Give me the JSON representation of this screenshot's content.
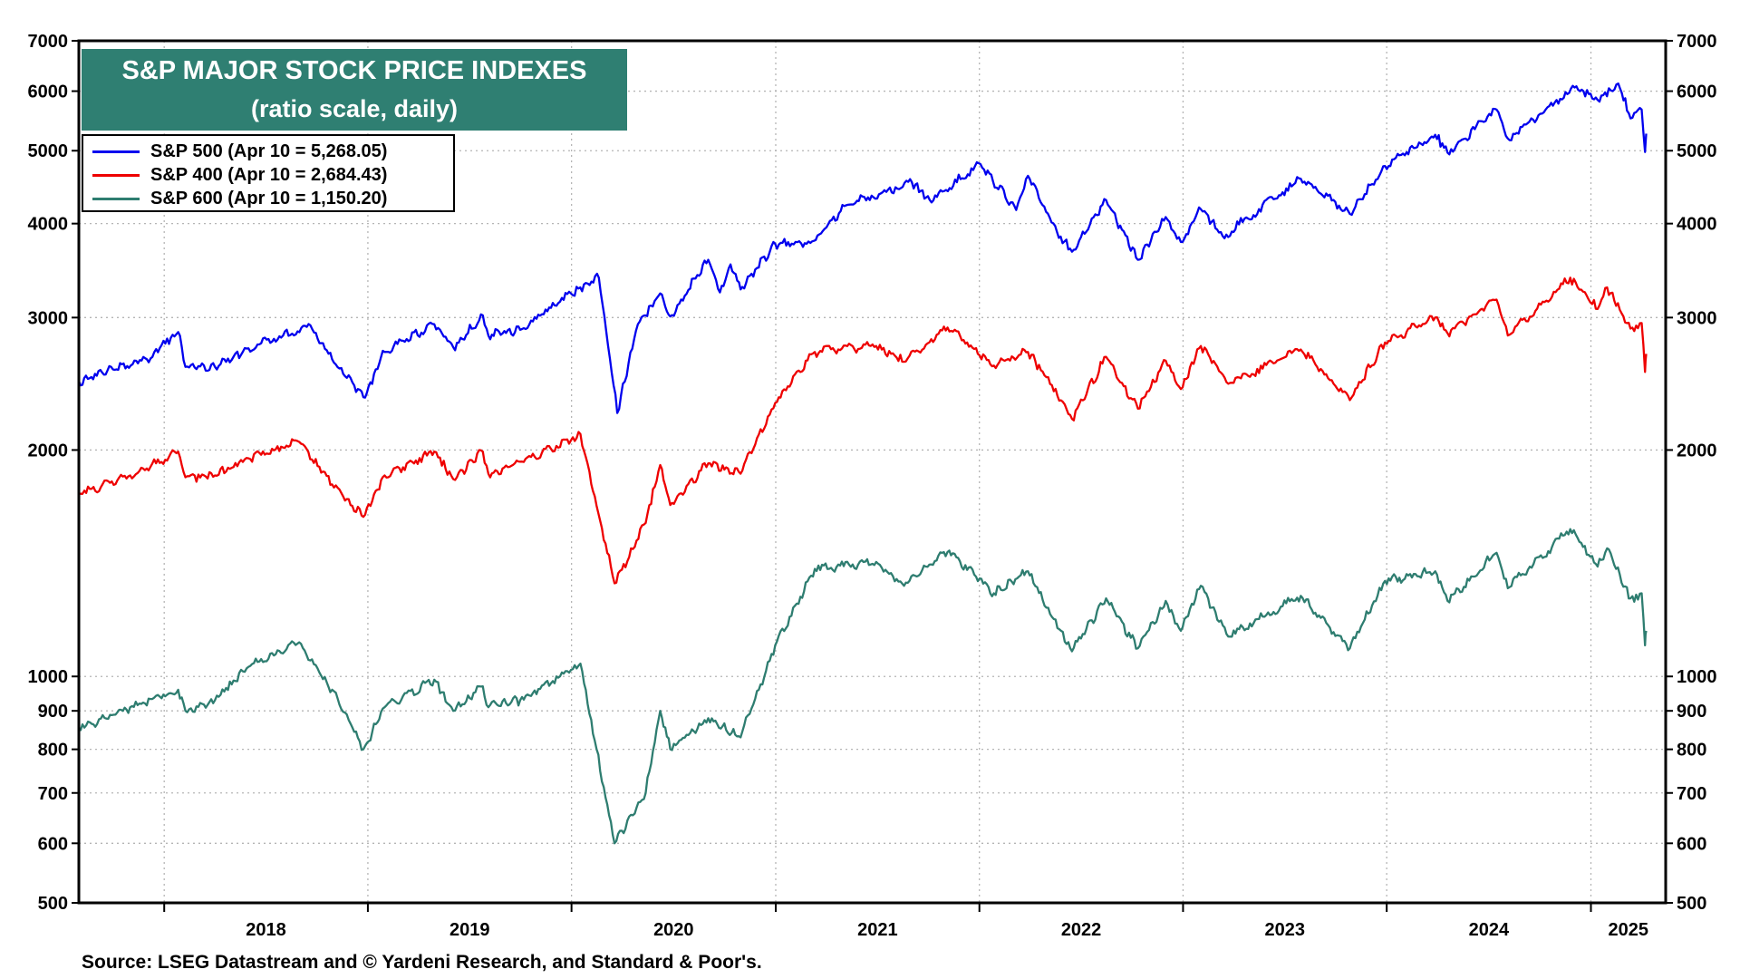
{
  "chart_data": {
    "type": "line",
    "title": "S&P MAJOR STOCK PRICE INDEXES",
    "subtitle": "(ratio scale, daily)",
    "xlabel": "",
    "ylabel": "",
    "yscale": "log",
    "ylim": [
      500,
      7000
    ],
    "xlim": [
      "2017-08-01",
      "2025-05-15"
    ],
    "grid": true,
    "legend_position": "top-left",
    "y_ticks": [
      "7000",
      "6000",
      "5000",
      "4000",
      "3000",
      "2000",
      "1000",
      "900",
      "800",
      "700",
      "600",
      "500"
    ],
    "y_tick_values": [
      7000,
      6000,
      5000,
      4000,
      3000,
      2000,
      1000,
      900,
      800,
      700,
      600,
      500
    ],
    "x_ticks": [
      "2018",
      "2019",
      "2020",
      "2021",
      "2022",
      "2023",
      "2024",
      "2025"
    ],
    "series": [
      {
        "name": "S&P 500 (Apr 10 = 5,268.05)",
        "color": "#0000ee",
        "points": [
          [
            "2017-08-01",
            2470
          ],
          [
            "2017-10-01",
            2560
          ],
          [
            "2017-12-01",
            2640
          ],
          [
            "2018-01-26",
            2870
          ],
          [
            "2018-02-08",
            2580
          ],
          [
            "2018-04-02",
            2580
          ],
          [
            "2018-06-01",
            2730
          ],
          [
            "2018-09-20",
            2930
          ],
          [
            "2018-10-29",
            2640
          ],
          [
            "2018-12-24",
            2350
          ],
          [
            "2019-01-31",
            2700
          ],
          [
            "2019-04-30",
            2940
          ],
          [
            "2019-06-03",
            2740
          ],
          [
            "2019-07-26",
            3020
          ],
          [
            "2019-08-05",
            2840
          ],
          [
            "2019-10-01",
            2890
          ],
          [
            "2019-12-31",
            3230
          ],
          [
            "2020-02-19",
            3390
          ],
          [
            "2020-03-23",
            2240
          ],
          [
            "2020-04-29",
            2940
          ],
          [
            "2020-06-08",
            3230
          ],
          [
            "2020-06-26",
            3010
          ],
          [
            "2020-09-02",
            3580
          ],
          [
            "2020-09-23",
            3240
          ],
          [
            "2020-10-12",
            3530
          ],
          [
            "2020-10-30",
            3270
          ],
          [
            "2020-12-31",
            3760
          ],
          [
            "2021-03-04",
            3770
          ],
          [
            "2021-05-07",
            4230
          ],
          [
            "2021-09-02",
            4540
          ],
          [
            "2021-10-04",
            4300
          ],
          [
            "2022-01-03",
            4800
          ],
          [
            "2022-03-08",
            4170
          ],
          [
            "2022-03-29",
            4630
          ],
          [
            "2022-05-20",
            3900
          ],
          [
            "2022-06-16",
            3670
          ],
          [
            "2022-08-16",
            4300
          ],
          [
            "2022-10-12",
            3580
          ],
          [
            "2022-12-01",
            4080
          ],
          [
            "2022-12-28",
            3780
          ],
          [
            "2023-02-02",
            4180
          ],
          [
            "2023-03-13",
            3850
          ],
          [
            "2023-07-31",
            4590
          ],
          [
            "2023-10-27",
            4120
          ],
          [
            "2023-12-29",
            4770
          ],
          [
            "2024-03-28",
            5250
          ],
          [
            "2024-04-19",
            4970
          ],
          [
            "2024-07-16",
            5670
          ],
          [
            "2024-08-05",
            5190
          ],
          [
            "2024-12-06",
            6090
          ],
          [
            "2025-01-13",
            5840
          ],
          [
            "2025-02-19",
            6140
          ],
          [
            "2025-03-13",
            5520
          ],
          [
            "2025-04-02",
            5670
          ],
          [
            "2025-04-08",
            4980
          ],
          [
            "2025-04-10",
            5268
          ]
        ]
      },
      {
        "name": "S&P 400 (Apr 10 = 2,684.43)",
        "color": "#ee0000",
        "points": [
          [
            "2017-08-01",
            1750
          ],
          [
            "2017-11-01",
            1850
          ],
          [
            "2018-01-26",
            1990
          ],
          [
            "2018-02-08",
            1840
          ],
          [
            "2018-04-02",
            1850
          ],
          [
            "2018-06-01",
            1950
          ],
          [
            "2018-08-31",
            2050
          ],
          [
            "2018-10-29",
            1800
          ],
          [
            "2018-12-24",
            1630
          ],
          [
            "2019-01-31",
            1850
          ],
          [
            "2019-04-30",
            1990
          ],
          [
            "2019-06-03",
            1830
          ],
          [
            "2019-07-26",
            1990
          ],
          [
            "2019-08-05",
            1860
          ],
          [
            "2019-10-01",
            1930
          ],
          [
            "2019-12-31",
            2060
          ],
          [
            "2020-01-17",
            2100
          ],
          [
            "2020-03-18",
            1330
          ],
          [
            "2020-05-13",
            1600
          ],
          [
            "2020-06-08",
            1910
          ],
          [
            "2020-06-26",
            1690
          ],
          [
            "2020-09-02",
            1920
          ],
          [
            "2020-10-30",
            1860
          ],
          [
            "2020-12-31",
            2310
          ],
          [
            "2021-03-12",
            2700
          ],
          [
            "2021-06-30",
            2750
          ],
          [
            "2021-08-19",
            2620
          ],
          [
            "2021-11-05",
            2910
          ],
          [
            "2022-01-27",
            2590
          ],
          [
            "2022-03-29",
            2700
          ],
          [
            "2022-05-11",
            2440
          ],
          [
            "2022-06-16",
            2200
          ],
          [
            "2022-08-16",
            2660
          ],
          [
            "2022-10-12",
            2270
          ],
          [
            "2022-12-01",
            2630
          ],
          [
            "2022-12-28",
            2410
          ],
          [
            "2023-02-02",
            2750
          ],
          [
            "2023-03-23",
            2450
          ],
          [
            "2023-07-31",
            2720
          ],
          [
            "2023-10-27",
            2330
          ],
          [
            "2023-12-29",
            2780
          ],
          [
            "2024-03-28",
            3000
          ],
          [
            "2024-04-19",
            2860
          ],
          [
            "2024-07-16",
            3170
          ],
          [
            "2024-08-05",
            2840
          ],
          [
            "2024-11-25",
            3390
          ],
          [
            "2025-01-13",
            3080
          ],
          [
            "2025-01-30",
            3290
          ],
          [
            "2025-03-13",
            2900
          ],
          [
            "2025-04-02",
            2950
          ],
          [
            "2025-04-08",
            2540
          ],
          [
            "2025-04-10",
            2684
          ]
        ]
      },
      {
        "name": "S&P 600 (Apr 10 = 1,150.20)",
        "color": "#2e7d70",
        "points": [
          [
            "2017-08-01",
            850
          ],
          [
            "2017-11-01",
            910
          ],
          [
            "2018-01-26",
            960
          ],
          [
            "2018-02-08",
            900
          ],
          [
            "2018-04-02",
            930
          ],
          [
            "2018-06-01",
            1030
          ],
          [
            "2018-08-31",
            1110
          ],
          [
            "2018-10-29",
            960
          ],
          [
            "2018-12-24",
            800
          ],
          [
            "2019-01-31",
            910
          ],
          [
            "2019-04-30",
            990
          ],
          [
            "2019-06-03",
            900
          ],
          [
            "2019-07-26",
            970
          ],
          [
            "2019-08-05",
            910
          ],
          [
            "2019-10-01",
            930
          ],
          [
            "2019-12-31",
            1020
          ],
          [
            "2020-01-17",
            1040
          ],
          [
            "2020-03-18",
            600
          ],
          [
            "2020-05-13",
            700
          ],
          [
            "2020-06-08",
            900
          ],
          [
            "2020-06-26",
            800
          ],
          [
            "2020-09-02",
            880
          ],
          [
            "2020-10-30",
            830
          ],
          [
            "2020-12-31",
            1100
          ],
          [
            "2021-03-12",
            1390
          ],
          [
            "2021-06-30",
            1420
          ],
          [
            "2021-08-19",
            1320
          ],
          [
            "2021-11-08",
            1470
          ],
          [
            "2022-01-27",
            1290
          ],
          [
            "2022-03-29",
            1380
          ],
          [
            "2022-05-11",
            1200
          ],
          [
            "2022-06-16",
            1080
          ],
          [
            "2022-08-16",
            1270
          ],
          [
            "2022-10-12",
            1090
          ],
          [
            "2022-12-01",
            1260
          ],
          [
            "2022-12-28",
            1150
          ],
          [
            "2023-02-02",
            1320
          ],
          [
            "2023-03-23",
            1130
          ],
          [
            "2023-07-31",
            1280
          ],
          [
            "2023-10-27",
            1090
          ],
          [
            "2023-12-29",
            1340
          ],
          [
            "2024-03-28",
            1380
          ],
          [
            "2024-04-19",
            1260
          ],
          [
            "2024-07-16",
            1460
          ],
          [
            "2024-08-05",
            1310
          ],
          [
            "2024-11-25",
            1570
          ],
          [
            "2025-01-13",
            1400
          ],
          [
            "2025-01-30",
            1480
          ],
          [
            "2025-03-13",
            1270
          ],
          [
            "2025-04-02",
            1290
          ],
          [
            "2025-04-08",
            1100
          ],
          [
            "2025-04-10",
            1150
          ]
        ]
      }
    ]
  },
  "source": "Source: LSEG Datastream and © Yardeni Research, and Standard & Poor's."
}
